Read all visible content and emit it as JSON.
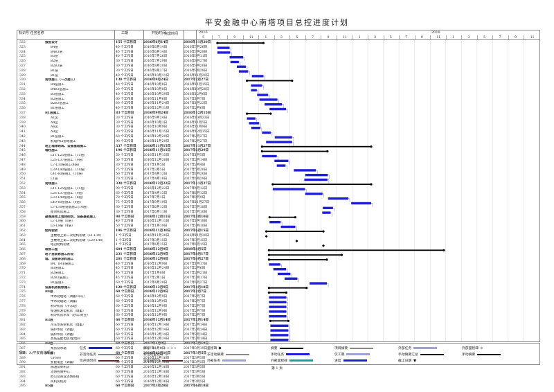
{
  "page": {
    "title": "平安金融中心南塔项目总控进度计划",
    "footer": "第 1 页"
  },
  "header": {
    "col_id_task": "标识号 任务名称",
    "col_duration": "工期",
    "col_start": "开始时间",
    "col_finish": "完成时间",
    "year_left": "2016",
    "year_right": "2018",
    "months": [
      "5",
      "7",
      "9",
      "11",
      "1",
      "3",
      "5",
      "7",
      "9",
      "11",
      "1",
      "3",
      "5",
      "7",
      "9",
      "11",
      "1",
      "3",
      "5",
      "7",
      "9",
      "11"
    ]
  },
  "rows": [
    {
      "id": "322",
      "name": "报批设计",
      "dur": "155 个工作日",
      "start": "2016年6月14日",
      "finish": "2016年11月20日",
      "sum": true
    },
    {
      "id": "323",
      "name": "B4层",
      "dur": "40 个工作日",
      "start": "2016年6月14日",
      "finish": "2016年7月26日"
    },
    {
      "id": "324",
      "name": "B4B3层",
      "dur": "45 个工作日",
      "start": "2016年6月14日",
      "finish": "2016年7月28日"
    },
    {
      "id": "325",
      "name": "B3层",
      "dur": "40 个工作日",
      "start": "2016年7月26日",
      "finish": "2016年9月11日"
    },
    {
      "id": "326",
      "name": "B2层",
      "dur": "30 个工作日",
      "start": "2016年7月29日",
      "finish": "2016年8月27日"
    },
    {
      "id": "327",
      "name": "B2B3层",
      "dur": "30 个工作日",
      "start": "2016年8月20日",
      "finish": "2016年9月20日"
    },
    {
      "id": "328",
      "name": "B1层",
      "dur": "30 个工作日",
      "start": "2016年8月27日",
      "finish": "2016年9月28日"
    },
    {
      "id": "329",
      "name": "B1层",
      "dur": "40 个工作日",
      "start": "2016年10月11日",
      "finish": "2016年11月20日"
    },
    {
      "id": "330",
      "name": "现场施工（一次施工）",
      "dur": "138 个工作日",
      "start": "2016年9月24日",
      "finish": "2017年2月27日",
      "sum": true
    },
    {
      "id": "331",
      "name": "B4层施工",
      "dur": "40 个工作日",
      "start": "2016年10月8日",
      "finish": "2016年11月15日"
    },
    {
      "id": "332",
      "name": "B4B3层施工",
      "dur": "20 个工作日",
      "start": "2016年10月8日",
      "finish": "2016年10月28日"
    },
    {
      "id": "333",
      "name": "B3层施工",
      "dur": "40 个工作日",
      "start": "2016年10月29日",
      "finish": "2016年12月6日"
    },
    {
      "id": "334",
      "name": "B2层施工",
      "dur": "60 个工作日",
      "start": "2016年11月6日",
      "finish": "2017年1月7日"
    },
    {
      "id": "335",
      "name": "B2B3层施工",
      "dur": "60 个工作日",
      "start": "2016年11月24日",
      "finish": "2017年1月23日"
    },
    {
      "id": "336",
      "name": "B1层施工",
      "dur": "40 个工作日",
      "start": "2016年12月11日",
      "finish": "2017年2月6日"
    },
    {
      "id": "337",
      "name": "B1层施工",
      "dur": "83 个工作日",
      "start": "2016年9月24日",
      "finish": "2016年12月15日",
      "sum": true
    },
    {
      "id": "338",
      "name": "A1区",
      "dur": "30 个工作日",
      "start": "2016年9月24日",
      "finish": "2016年10月23日"
    },
    {
      "id": "339",
      "name": "A4区",
      "dur": "30 个工作日",
      "start": "2016年10月1日",
      "finish": "2016年11月5日"
    },
    {
      "id": "340",
      "name": "A6区",
      "dur": "30 个工作日",
      "start": "2016年10月9日",
      "finish": "2016年11月9日"
    },
    {
      "id": "341",
      "name": "A9区",
      "dur": "30 个工作日",
      "start": "2016年11月15日",
      "finish": "2016年12月15日"
    },
    {
      "id": "342",
      "name": "B1层施工",
      "dur": "60 个工作日",
      "start": "2016年12月29日",
      "finish": "2017年2月27日"
    },
    {
      "id": "343",
      "name": "机电井口管线施工",
      "dur": "90 个工作日",
      "start": "2016年11月29日",
      "finish": "2017年2月27日"
    },
    {
      "id": "344",
      "name": "地上墙体砌筑、设备基础施工",
      "dur": "337 个工作日",
      "start": "2016年11月15日",
      "finish": "2017年11月27日",
      "sum": true
    },
    {
      "id": "345",
      "name": "墙柱施工",
      "dur": "196 个工作日",
      "start": "2016年11月15日",
      "finish": "2017年6月29日",
      "sum": true
    },
    {
      "id": "346",
      "name": "L11-L25层施工（15层）",
      "dur": "50 个工作日",
      "start": "2016年11月15日",
      "finish": "2017年1月5日"
    },
    {
      "id": "347",
      "name": "L26-L37层施工（9层）",
      "dur": "50 个工作日",
      "start": "2016年12月28日",
      "finish": "2017年2月14日"
    },
    {
      "id": "348",
      "name": "L7-L10层施工(4层)",
      "dur": "30 个工作日",
      "start": "2017年1月5日",
      "finish": "2017年2月4日"
    },
    {
      "id": "349",
      "name": "L39-L40层施工（10层）",
      "dur": "75 个工作日",
      "start": "2017年3月5日",
      "finish": "2017年5月20日"
    },
    {
      "id": "350",
      "name": "L41-60层施工（10层）",
      "dur": "50 个工作日",
      "start": "2017年4月13日",
      "finish": "2017年6月30日"
    },
    {
      "id": "351",
      "name": "L1层",
      "dur": "70 个工作日",
      "start": "2017年4月10日",
      "finish": "2017年6月29日"
    },
    {
      "id": "352",
      "name": "现场施工",
      "dur": "330 个工作日",
      "start": "2016年12月22日",
      "finish": "2017年11月27日",
      "sum": true
    },
    {
      "id": "353",
      "name": "L11-L25层施工（15层）",
      "dur": "90 个工作日",
      "start": "2016年12月22日",
      "finish": "2017年4月12日"
    },
    {
      "id": "354",
      "name": "L26-L37层施工（9层）",
      "dur": "60 个工作日",
      "start": "2017年4月13日",
      "finish": "2017年6月12日"
    },
    {
      "id": "355",
      "name": "L33-L40层施工（8层）",
      "dur": "70 个工作日",
      "start": "2017年7月1日",
      "finish": "2017年9月9日"
    },
    {
      "id": "356",
      "name": "L40-60层施工（9层）",
      "dur": "75 个工作日",
      "start": "2017年9月19日",
      "finish": "2017年11月27日"
    },
    {
      "id": "357",
      "name": "L7-L10层设备施工(10层)",
      "dur": "60 个工作日",
      "start": "2017年6月13日",
      "finish": "2017年7月18日"
    },
    {
      "id": "358",
      "name": "屋顶机房施工",
      "dur": "30 个工作日",
      "start": "2017年6月11日",
      "finish": "2017年7月10日"
    },
    {
      "id": "359",
      "name": "避难层地上墙体砌筑、设备基础施工",
      "dur": "90 个工作日",
      "start": "2016年12月11日",
      "finish": "2017年3月10日",
      "sum": true
    },
    {
      "id": "360",
      "name": "L7-L9层（6层）",
      "dur": "40 个工作日",
      "start": "2016年12月11日",
      "finish": "2017年1月18日"
    },
    {
      "id": "361",
      "name": "L6-L9层（4层）",
      "dur": "50 个工作日",
      "start": "2017年1月19日",
      "finish": "2017年3月10日"
    },
    {
      "id": "362",
      "name": "结构验收",
      "dur": "196 个工作日",
      "start": "2016年11月30日",
      "finish": "2017年6月15日",
      "sum": true
    },
    {
      "id": "363",
      "name": "主楼地上第一次结构验收（L1-L10）",
      "dur": "1 个工作日",
      "start": "2016年11月30日",
      "finish": "2016年11月30日"
    },
    {
      "id": "364",
      "name": "主楼地上第二次结构验收（L20-L40）",
      "dur": "1 个工作日",
      "start": "2017年3月15日",
      "finish": "2017年3月15日"
    },
    {
      "id": "365",
      "name": "塔冠结构验收",
      "dur": "1 个工作日",
      "start": "2017年6月15日",
      "finish": "2017年6月15日"
    },
    {
      "id": "366",
      "name": "装修工程",
      "dur": "604 个工作日",
      "start": "2016年12月9日",
      "finish": "2018年8月5日",
      "sum": true
    },
    {
      "id": "367",
      "name": "地下室装修施工阶段",
      "dur": "231 个工作日",
      "start": "2016年12月9日",
      "finish": "2017年8月17日",
      "sum": true
    },
    {
      "id": "368",
      "name": "墙、顶面等涂料施工",
      "dur": "201 个工作日",
      "start": "2016年12月9日",
      "finish": "2017年6月27日",
      "sum": true
    },
    {
      "id": "369",
      "name": "B4、B4B层施工",
      "dur": "40 个工作日",
      "start": "2016年12月9日",
      "finish": "2017年1月17日"
    },
    {
      "id": "370",
      "name": "B3层施工",
      "dur": "45 个工作日",
      "start": "2016年12月24日",
      "finish": "2017年2月6日"
    },
    {
      "id": "371",
      "name": "B2层施工",
      "dur": "45 个工作日",
      "start": "2017年1月8日",
      "finish": "2017年2月21日"
    },
    {
      "id": "372",
      "name": "B2B3层施工",
      "dur": "45 个工作日",
      "start": "2017年2月1日",
      "finish": "2017年3月17日"
    },
    {
      "id": "373",
      "name": "B1层施工",
      "dur": "60 个工作日",
      "start": "2017年4月28日",
      "finish": "2017年6月27日"
    },
    {
      "id": "374",
      "name": "设备机房装修施工",
      "dur": "120 个工作日",
      "start": "2016年12月9日",
      "finish": "2017年4月18日",
      "sum": true
    },
    {
      "id": "375",
      "name": "B4层",
      "dur": "60 个工作日",
      "start": "2016年12月9日",
      "finish": "2017年2月7日",
      "sum": true
    },
    {
      "id": "376",
      "name": "中水处理站（调蓄/冷冻）",
      "dur": "60 个工作日",
      "start": "2016年12月9日",
      "finish": "2017年2月7日"
    },
    {
      "id": "377",
      "name": "中水处理站（调蓄）",
      "dur": "60 个工作日",
      "start": "2016年12月9日",
      "finish": "2017年2月7日"
    },
    {
      "id": "378",
      "name": "制冷机房（冷冻站）",
      "dur": "60 个工作日",
      "start": "2016年12月9日",
      "finish": "2017年2月7日"
    },
    {
      "id": "379",
      "name": "柴油机发电机房（调蓄）",
      "dur": "60 个工作日",
      "start": "2016年12月9日",
      "finish": "2017年2月7日"
    },
    {
      "id": "380",
      "name": "制冷机房水泵（办公/商业）",
      "dur": "60 个工作日",
      "start": "2016年12月9日",
      "finish": "2017年2月7日"
    },
    {
      "id": "381",
      "name": "B3层",
      "dur": "60 个工作日",
      "start": "2016年12月14日",
      "finish": "2017年2月14日",
      "sum": true
    },
    {
      "id": "382",
      "name": "冷冻水系统机房（调蓄）",
      "dur": "60 个工作日",
      "start": "2016年12月14日",
      "finish": "2017年2月14日"
    },
    {
      "id": "383",
      "name": "锅炉水房（调蓄）",
      "dur": "60 个工作日",
      "start": "2016年12月14日",
      "finish": "2017年2月14日"
    },
    {
      "id": "384",
      "name": "锅炉水房（调蓄）",
      "dur": "60 个工作日",
      "start": "2016年12月14日",
      "finish": "2017年2月14日"
    },
    {
      "id": "385",
      "name": "高低压配电房/配电间",
      "dur": "60 个工作日",
      "start": "2016年12月14日",
      "finish": "2017年2月14日"
    },
    {
      "id": "386",
      "name": "B2层",
      "dur": "60 个工作日",
      "start": "2017年1月9日",
      "finish": "2017年3月19日",
      "sum": true
    },
    {
      "id": "387",
      "name": "泵房及水箱",
      "dur": "60 个工作日",
      "start": "2017年1月9日",
      "finish": "2017年3月19日"
    },
    {
      "id": "388",
      "name": "B1层",
      "dur": "60 个工作日",
      "start": "2016年12月16日",
      "finish": "2017年3月5日",
      "sum": true
    },
    {
      "id": "389",
      "name": "UPS间",
      "dur": "60 个工作日",
      "start": "2016年12月16日",
      "finish": "2017年3月5日"
    },
    {
      "id": "390",
      "name": "变配电室（调蓄）",
      "dur": "60 个工作日",
      "start": "2016年12月16日",
      "finish": "2017年3月5日"
    },
    {
      "id": "391",
      "name": "隔油及柴机房",
      "dur": "60 个工作日",
      "start": "2016年12月16日",
      "finish": "2017年3月5日"
    },
    {
      "id": "392",
      "name": "消防控制中心",
      "dur": "60 个工作日",
      "start": "2016年12月16日",
      "finish": "2017年3月5日"
    },
    {
      "id": "393",
      "name": "办公及商业消防系统",
      "dur": "60 个工作日",
      "start": "2016年12月16日",
      "finish": "2017年3月5日"
    },
    {
      "id": "394",
      "name": "风机房机房",
      "dur": "60 个工作日",
      "start": "2016年12月16日",
      "finish": "2017年3月5日"
    },
    {
      "id": "395",
      "name": "B5层",
      "dur": "60 个工作日",
      "start": "2017年3月28日",
      "finish": "2017年6月18日",
      "sum": true
    }
  ],
  "legend": {
    "project": "项目：A(平安南塔项目)",
    "items": [
      "任务",
      "拆分",
      "里程碑",
      "摘要",
      "项目摘要",
      "外部任务",
      "外部里程碑",
      "非活动任务",
      "非活动里程碑",
      "非活动摘要",
      "手动任务",
      "仅工期",
      "手动摘要汇总",
      "手动摘要",
      "仅开始时间",
      "仅完成时间",
      "外部任务",
      "外部里程碑",
      "进度",
      "截止日期"
    ]
  },
  "colors": {
    "task_bar": "#1f1fd6",
    "summary_bar": "#000000",
    "link": "#5a5ad8",
    "grid": "#888888"
  }
}
